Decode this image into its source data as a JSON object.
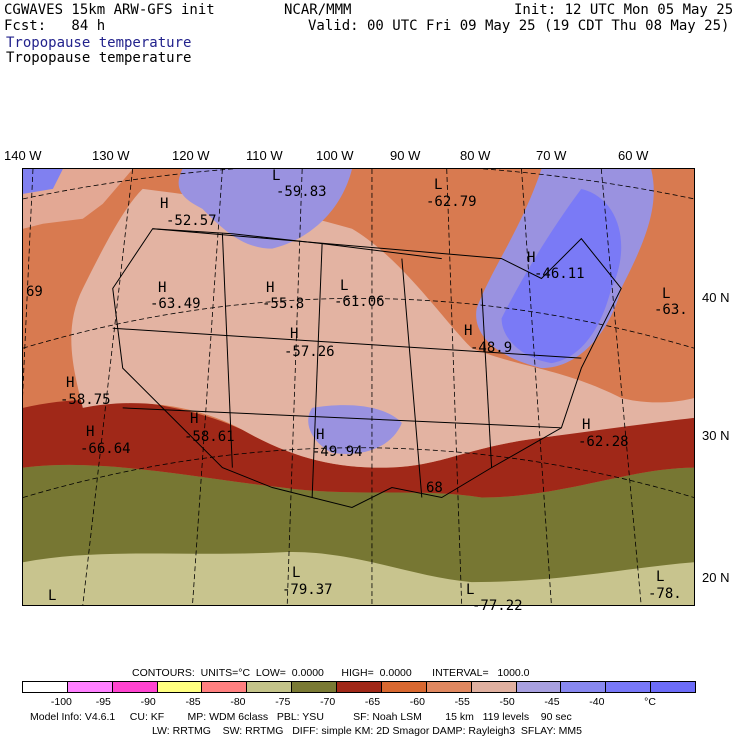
{
  "header": {
    "model": "CGWAVES 15km ARW-GFS init",
    "center": "NCAR/MMM",
    "init": "Init: 12 UTC Mon 05 May 25",
    "fcst": "Fcst:   84 h",
    "valid": "Valid: 00 UTC Fri 09 May 25 (19 CDT Thu 08 May 25)",
    "field_blue": "Tropopause temperature",
    "field_black": "Tropopause temperature"
  },
  "lon_labels": [
    "140 W",
    "130 W",
    "120 W",
    "110 W",
    "100 W",
    "90 W",
    "80 W",
    "70 W",
    "60 W"
  ],
  "lat_labels": [
    "40 N",
    "30 N",
    "20 N"
  ],
  "map_labels": [
    {
      "id": "l1",
      "letter": "L",
      "value": "-59.83"
    },
    {
      "id": "h1",
      "letter": "H",
      "value": "-52.57"
    },
    {
      "id": "l2",
      "letter": "L",
      "value": "-62.79"
    },
    {
      "id": "h2",
      "letter": "H",
      "value": "-46.11"
    },
    {
      "id": "h3",
      "letter": "H",
      "value": "-63.49"
    },
    {
      "id": "h4",
      "letter": "H",
      "value": "-55.8"
    },
    {
      "id": "l3",
      "letter": "L",
      "value": "-61.06"
    },
    {
      "id": "h5",
      "letter": "H",
      "value": "-57.26"
    },
    {
      "id": "h6",
      "letter": "H",
      "value": "-48.9"
    },
    {
      "id": "l4",
      "letter": "L",
      "value": "-63."
    },
    {
      "id": "h7",
      "letter": "H",
      "value": "-58.75"
    },
    {
      "id": "h8",
      "letter": "H",
      "value": "-66.64"
    },
    {
      "id": "h9",
      "letter": "H",
      "value": "-58.61"
    },
    {
      "id": "h10",
      "letter": "H",
      "value": "-49.94"
    },
    {
      "id": "h11",
      "letter": "H",
      "value": "-62.28"
    },
    {
      "id": "l5",
      "letter": "L",
      "value": "-79.37"
    },
    {
      "id": "l6",
      "letter": "L",
      "value": "-77.22"
    },
    {
      "id": "l7",
      "letter": "L",
      "value": "-78."
    },
    {
      "id": "l8",
      "letter": "L",
      "value": ""
    },
    {
      "id": "e1",
      "letter": "",
      "value": "69"
    },
    {
      "id": "e2",
      "letter": "",
      "value": "68"
    }
  ],
  "contours_line": "CONTOURS:  UNITS=°C  LOW=  0.0000      HIGH=  0.0000       INTERVAL=   1000.0",
  "colorbar": {
    "bins": [
      {
        "color": "#ffffff"
      },
      {
        "color": "#ff80ff"
      },
      {
        "color": "#ff44d0"
      },
      {
        "color": "#ffff80"
      },
      {
        "color": "#ff8080"
      },
      {
        "color": "#c4c48a"
      },
      {
        "color": "#7a7a34"
      },
      {
        "color": "#a02818"
      },
      {
        "color": "#d86830"
      },
      {
        "color": "#e08860"
      },
      {
        "color": "#e0b0a0"
      },
      {
        "color": "#a8a0e0"
      },
      {
        "color": "#8888f0"
      },
      {
        "color": "#7878f8"
      },
      {
        "color": "#6c6cf8"
      }
    ],
    "labels": [
      "-100",
      "-95",
      "-90",
      "-85",
      "-80",
      "-75",
      "-70",
      "-65",
      "-60",
      "-55",
      "-50",
      "-45",
      "-40",
      "°C"
    ]
  },
  "footer": {
    "line1": "Model Info: V4.6.1     CU: KF        MP: WDM 6class   PBL: YSU          SF: Noah LSM        15 km   119 levels    90 sec",
    "line2": "LW: RRTMG    SW: RRTMG   DIFF: simple KM: 2D Smagor DAMP: Rayleigh3  SFLAY: MM5"
  }
}
